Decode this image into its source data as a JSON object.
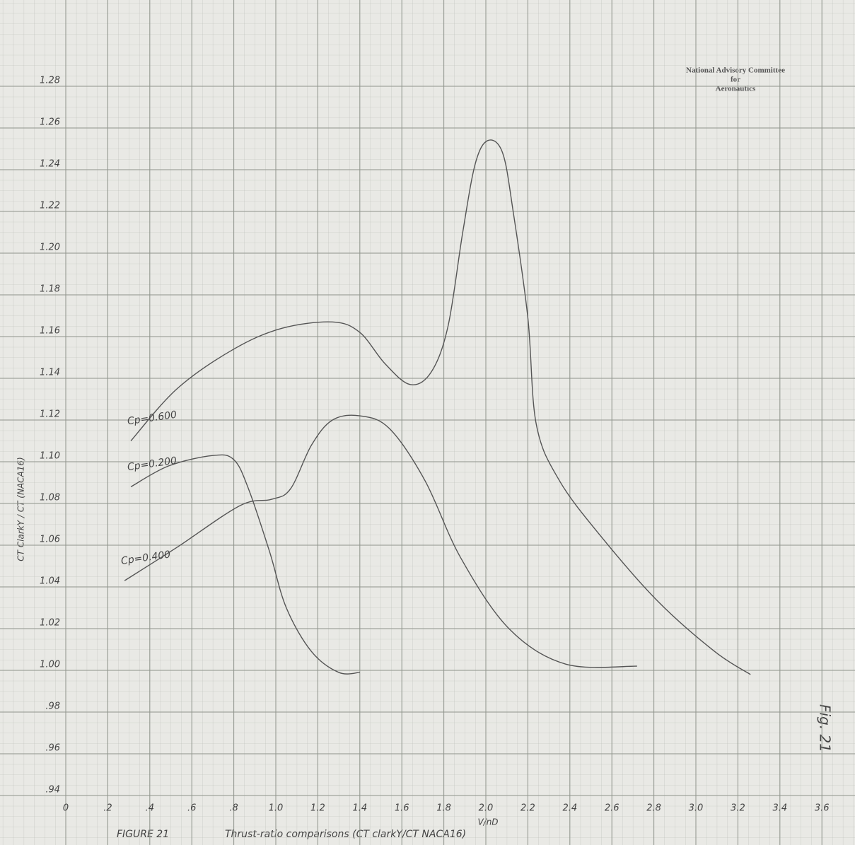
{
  "chart_data": {
    "type": "line",
    "title": "FIGURE 21",
    "subtitle": "Thrust-ratio comparisons (CT clarkY/CT NACA16)",
    "annotations": [
      "National Advisory Committee",
      "for",
      "Aeronautics",
      "Fig. 21"
    ],
    "x_label": "V/nD",
    "y_label": "CT ClarkY / CT (NACA16)",
    "xlim": [
      0,
      3.7
    ],
    "ylim": [
      0.94,
      1.3
    ],
    "grid": true,
    "xticks": [
      {
        "value": 0,
        "label": "0"
      },
      {
        "value": 0.2,
        "label": ".2"
      },
      {
        "value": 0.4,
        "label": ".4"
      },
      {
        "value": 0.6,
        "label": ".6"
      },
      {
        "value": 0.8,
        "label": ".8"
      },
      {
        "value": 1.0,
        "label": "1.0"
      },
      {
        "value": 1.2,
        "label": "1.2"
      },
      {
        "value": 1.4,
        "label": "1.4"
      },
      {
        "value": 1.6,
        "label": "1.6"
      },
      {
        "value": 1.8,
        "label": "1.8"
      },
      {
        "value": 2.0,
        "label": "2.0"
      },
      {
        "value": 2.2,
        "label": "2.2"
      },
      {
        "value": 2.4,
        "label": "2.4"
      },
      {
        "value": 2.6,
        "label": "2.6"
      },
      {
        "value": 2.8,
        "label": "2.8"
      },
      {
        "value": 3.0,
        "label": "3.0"
      },
      {
        "value": 3.2,
        "label": "3.2"
      },
      {
        "value": 3.4,
        "label": "3.4"
      },
      {
        "value": 3.6,
        "label": "3.6"
      }
    ],
    "yticks": [
      {
        "value": 0.94,
        "label": ".94"
      },
      {
        "value": 0.96,
        "label": ".96"
      },
      {
        "value": 0.98,
        "label": ".98"
      },
      {
        "value": 1.0,
        "label": "1.00"
      },
      {
        "value": 1.02,
        "label": "1.02"
      },
      {
        "value": 1.04,
        "label": "1.04"
      },
      {
        "value": 1.06,
        "label": "1.06"
      },
      {
        "value": 1.08,
        "label": "1.08"
      },
      {
        "value": 1.1,
        "label": "1.10"
      },
      {
        "value": 1.12,
        "label": "1.12"
      },
      {
        "value": 1.14,
        "label": "1.14"
      },
      {
        "value": 1.16,
        "label": "1.16"
      },
      {
        "value": 1.18,
        "label": "1.18"
      },
      {
        "value": 1.2,
        "label": "1.20"
      },
      {
        "value": 1.22,
        "label": "1.22"
      },
      {
        "value": 1.24,
        "label": "1.24"
      },
      {
        "value": 1.26,
        "label": "1.26"
      },
      {
        "value": 1.28,
        "label": "1.28"
      }
    ],
    "series": [
      {
        "name": "Cp=0.600",
        "color": "#555555",
        "x": [
          0.31,
          0.53,
          0.8,
          1.03,
          1.27,
          1.4,
          1.52,
          1.64,
          1.74,
          1.82,
          1.89,
          1.95,
          2.01,
          2.08,
          2.13,
          2.2,
          2.24,
          2.35,
          2.55,
          2.82,
          3.09,
          3.26
        ],
        "values": [
          1.11,
          1.135,
          1.154,
          1.164,
          1.167,
          1.162,
          1.147,
          1.137,
          1.143,
          1.165,
          1.21,
          1.243,
          1.254,
          1.248,
          1.22,
          1.169,
          1.118,
          1.091,
          1.064,
          1.033,
          1.009,
          0.998
        ]
      },
      {
        "name": "Cp=0.200",
        "color": "#555555",
        "x": [
          0.31,
          0.49,
          0.7,
          0.8,
          0.87,
          0.97,
          1.05,
          1.17,
          1.3,
          1.4
        ],
        "values": [
          1.088,
          1.098,
          1.103,
          1.101,
          1.087,
          1.057,
          1.03,
          1.009,
          0.999,
          0.999
        ]
      },
      {
        "name": "Cp=0.400",
        "color": "#555555",
        "x": [
          0.28,
          0.53,
          0.83,
          0.98,
          1.07,
          1.17,
          1.27,
          1.4,
          1.54,
          1.71,
          1.88,
          2.11,
          2.38,
          2.72
        ],
        "values": [
          1.043,
          1.059,
          1.079,
          1.082,
          1.087,
          1.108,
          1.12,
          1.122,
          1.116,
          1.091,
          1.054,
          1.02,
          1.003,
          1.002
        ]
      }
    ]
  }
}
